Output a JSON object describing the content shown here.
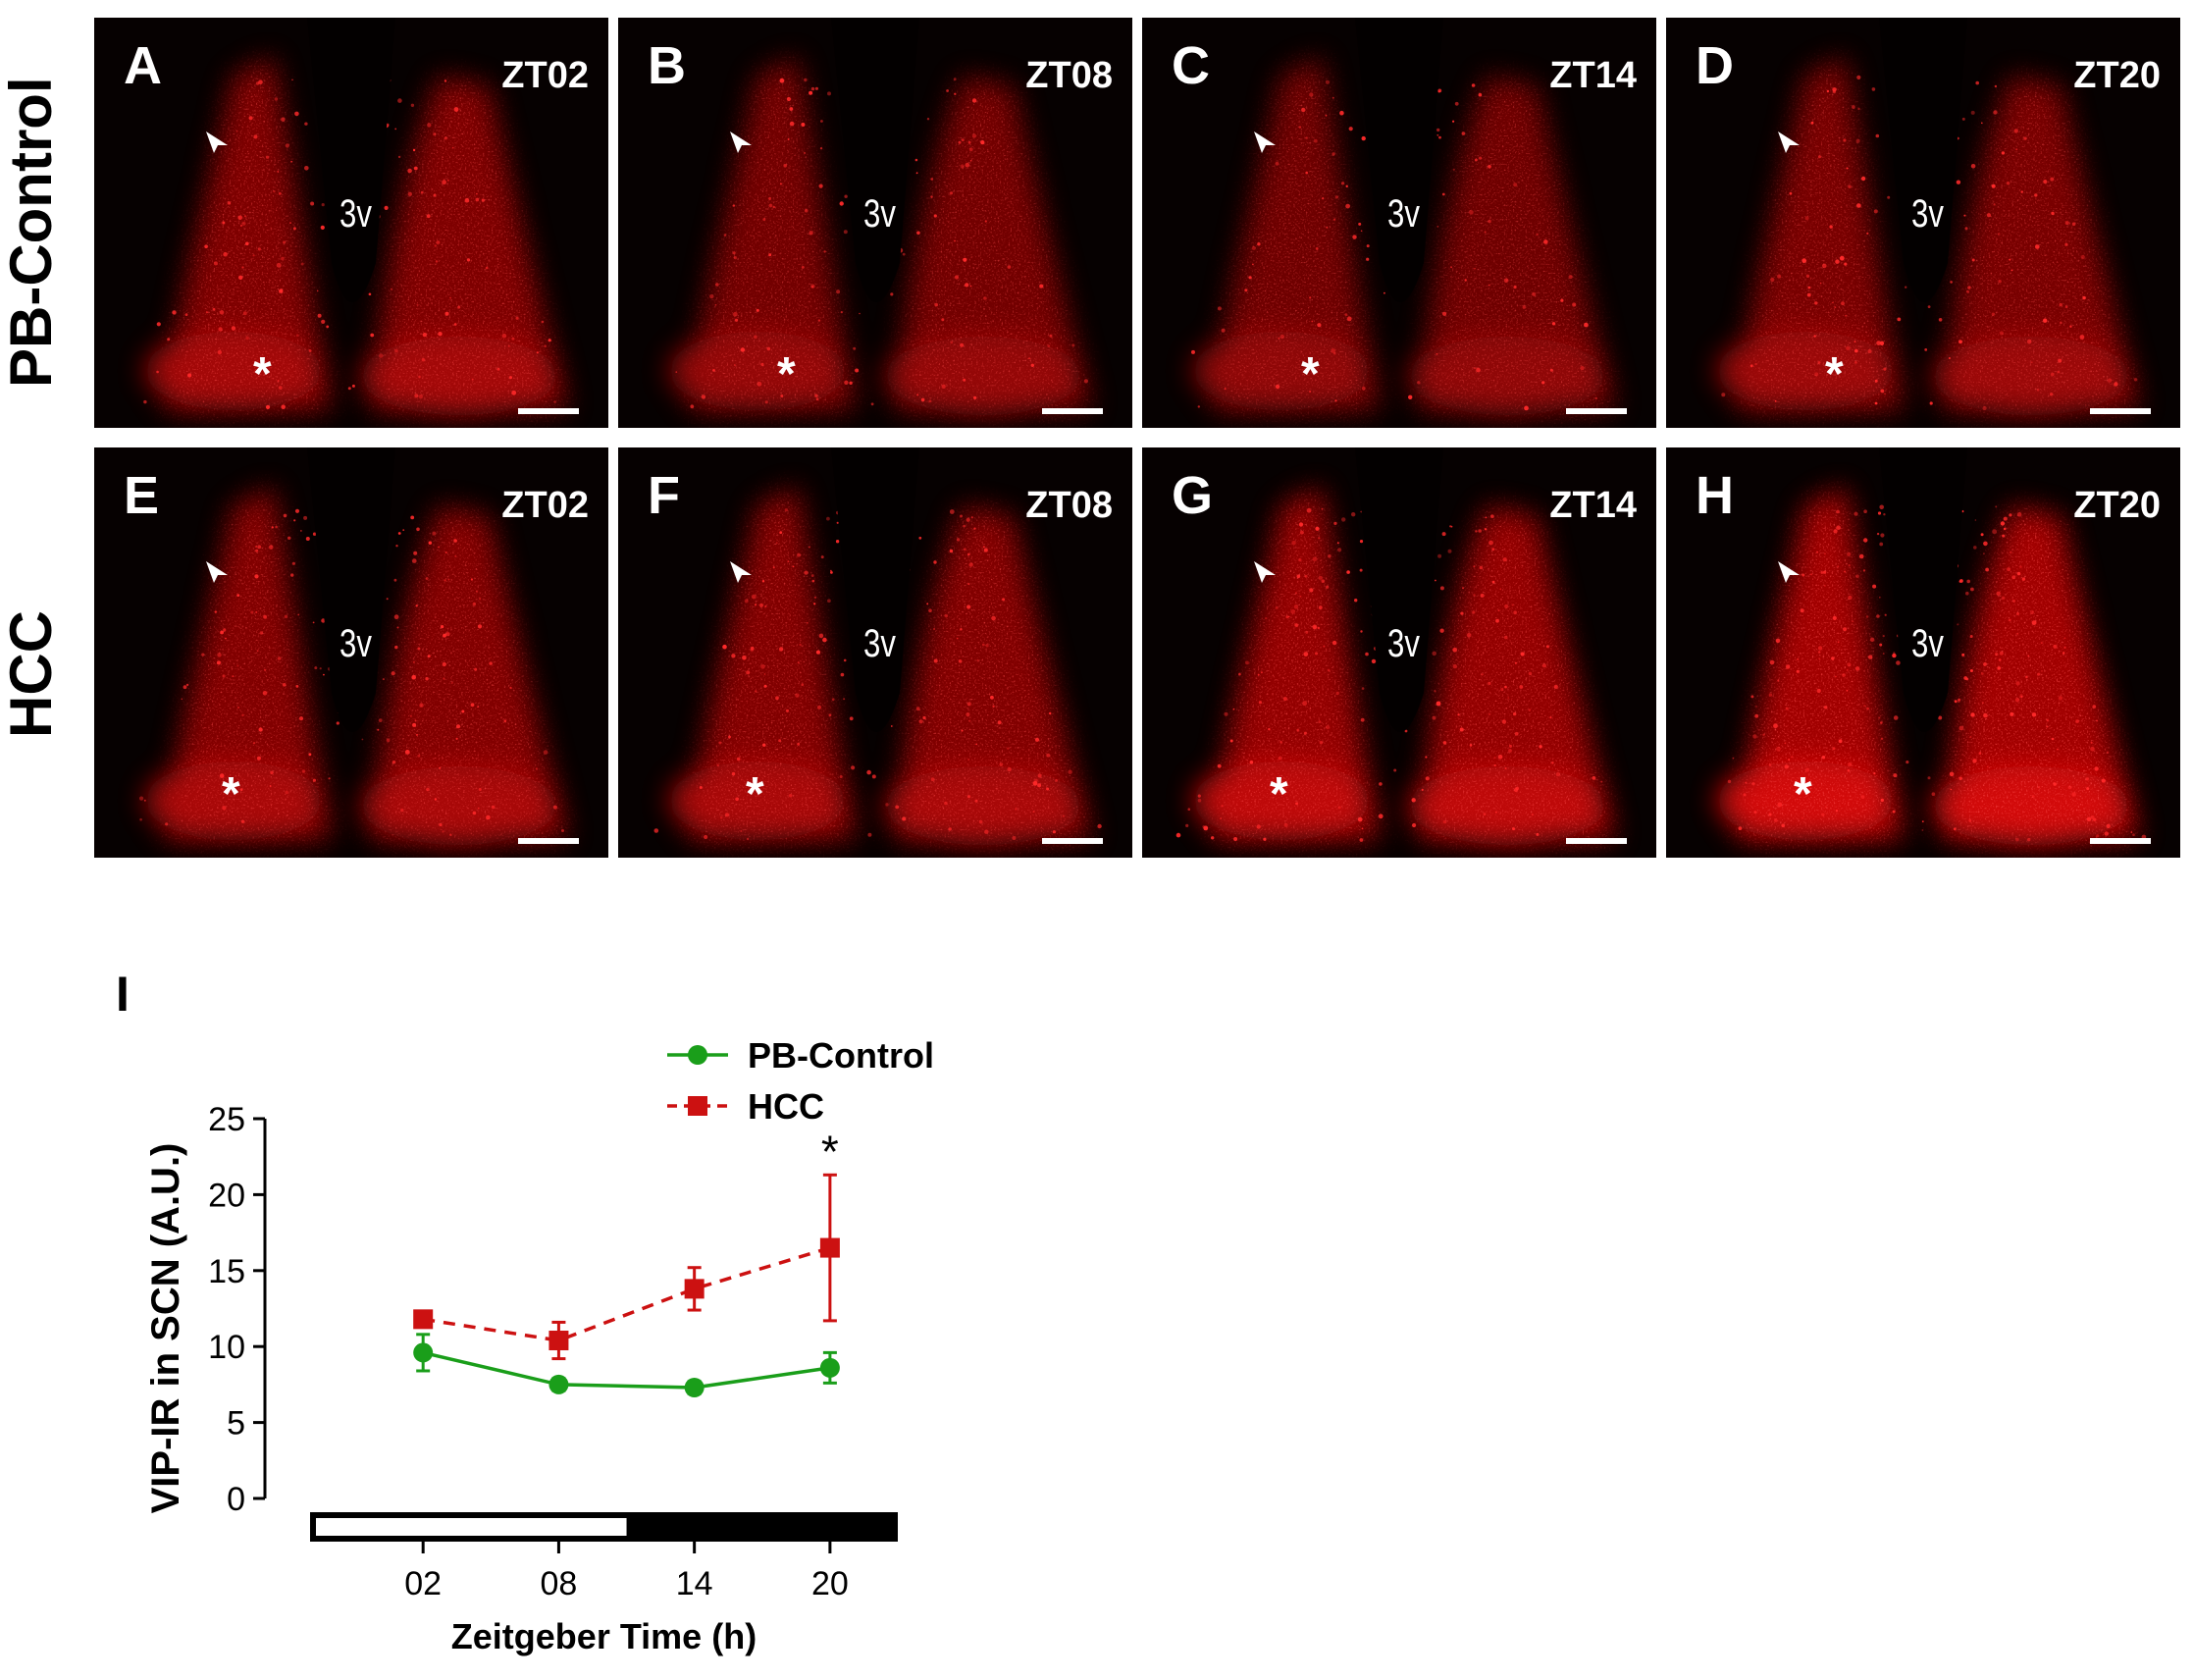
{
  "rows": [
    {
      "label": "PB-Control",
      "panels": [
        {
          "letter": "A",
          "zt": "ZT02",
          "ventricle": "3v",
          "star": "*",
          "intensity": 0.55
        },
        {
          "letter": "B",
          "zt": "ZT08",
          "ventricle": "3v",
          "star": "*",
          "intensity": 0.45
        },
        {
          "letter": "C",
          "zt": "ZT14",
          "ventricle": "3v",
          "star": "*",
          "intensity": 0.4
        },
        {
          "letter": "D",
          "zt": "ZT20",
          "ventricle": "3v",
          "star": "*",
          "intensity": 0.5
        }
      ]
    },
    {
      "label": "HCC",
      "panels": [
        {
          "letter": "E",
          "zt": "ZT02",
          "ventricle": "3v",
          "star": "*",
          "intensity": 0.6
        },
        {
          "letter": "F",
          "zt": "ZT08",
          "ventricle": "3v",
          "star": "*",
          "intensity": 0.6
        },
        {
          "letter": "G",
          "zt": "ZT14",
          "ventricle": "3v",
          "star": "*",
          "intensity": 0.78
        },
        {
          "letter": "H",
          "zt": "ZT20",
          "ventricle": "3v",
          "star": "*",
          "intensity": 0.95
        }
      ]
    }
  ],
  "panel_label": "I",
  "colors": {
    "red": "#ff1a1a",
    "pb_control": "#1a9e1a",
    "hcc": "#cc1111",
    "background": "#060101"
  },
  "chart_data": {
    "type": "line",
    "title": "",
    "xlabel": "Zeitgeber Time (h)",
    "ylabel": "VIP-IR in SCN (A.U.)",
    "x_ticks": [
      "02",
      "08",
      "14",
      "20"
    ],
    "x": [
      2,
      8,
      14,
      20
    ],
    "y_ticks": [
      "0",
      "5",
      "10",
      "15",
      "20",
      "25"
    ],
    "ylim": [
      0,
      25
    ],
    "legend_position": "top-right",
    "series": [
      {
        "name": "PB-Control",
        "marker": "circle",
        "line": "solid",
        "color": "#1a9e1a",
        "values": [
          9.6,
          7.5,
          7.3,
          8.6
        ],
        "errors": [
          1.2,
          0.4,
          0.4,
          1.0
        ]
      },
      {
        "name": "HCC",
        "marker": "square",
        "line": "dashed",
        "color": "#cc1111",
        "values": [
          11.8,
          10.4,
          13.8,
          16.5
        ],
        "errors": [
          0.3,
          1.2,
          1.4,
          4.8
        ]
      }
    ],
    "annotations": [
      {
        "x": 20,
        "text": "*"
      }
    ],
    "light_dark_bar": {
      "light_until": 11,
      "range": [
        -3,
        23
      ]
    }
  }
}
